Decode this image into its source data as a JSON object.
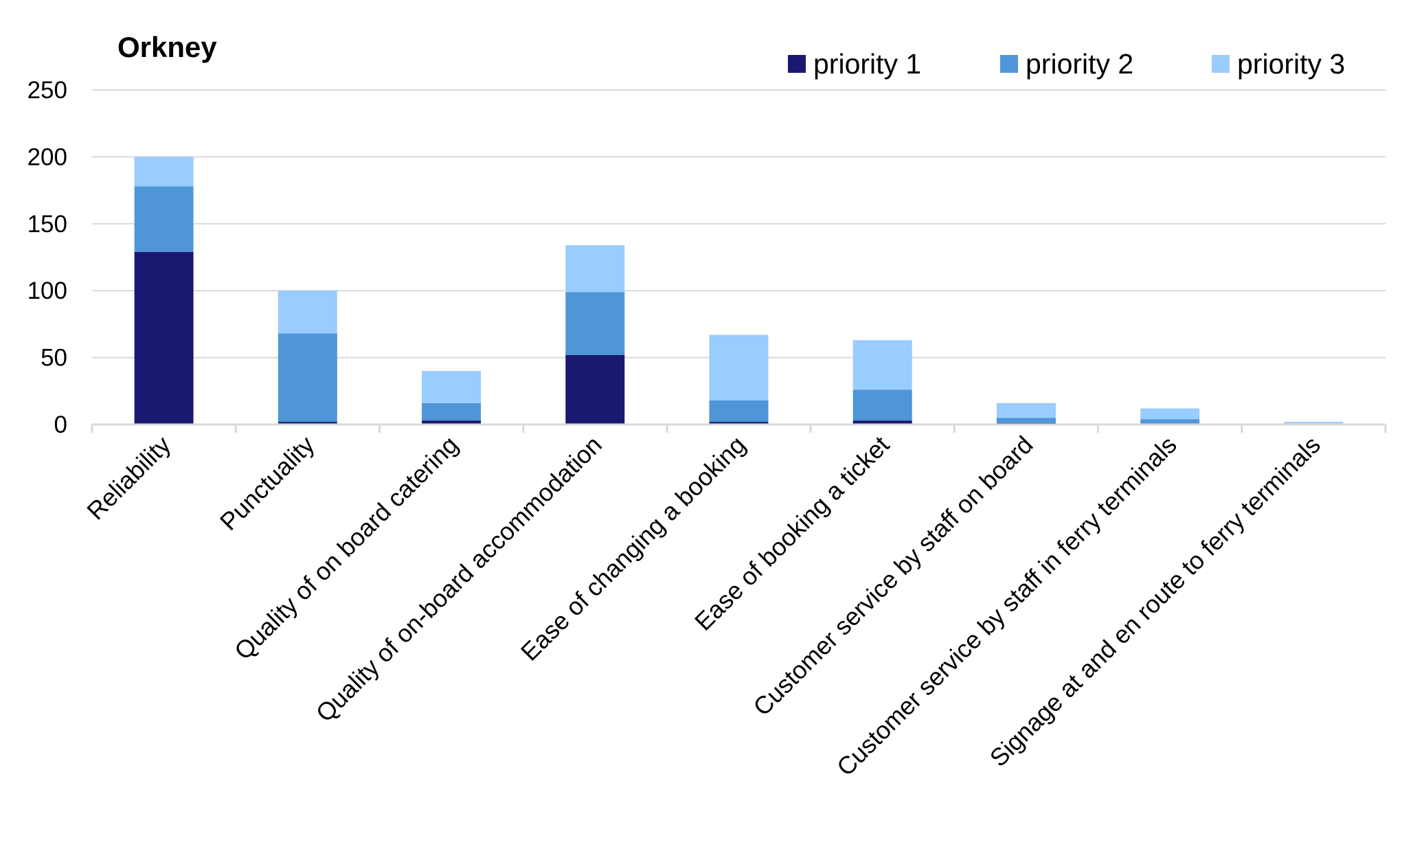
{
  "chart_data": {
    "type": "bar",
    "stacked": true,
    "title": "Orkney",
    "xlabel": "",
    "ylabel": "",
    "ylim": [
      0,
      250
    ],
    "yticks": [
      0,
      50,
      100,
      150,
      200,
      250
    ],
    "grid": true,
    "legend_position": "top-right",
    "categories": [
      "Reliability",
      "Punctuality",
      "Quality of on board catering",
      "Quality of on-board accommodation",
      "Ease of changing a booking",
      "Ease of booking a ticket",
      "Customer service by staff on board",
      "Customer service by staff in ferry terminals",
      "Signage at and en route to ferry terminals"
    ],
    "series": [
      {
        "name": "priority 1",
        "color": "#191970",
        "values": [
          129,
          2,
          3,
          52,
          2,
          3,
          1,
          0,
          0
        ]
      },
      {
        "name": "priority 2",
        "color": "#4f96d9",
        "values": [
          49,
          66,
          13,
          47,
          16,
          23,
          4,
          4,
          0
        ]
      },
      {
        "name": "priority 3",
        "color": "#99ccff",
        "values": [
          22,
          32,
          24,
          35,
          49,
          37,
          11,
          8,
          2
        ]
      }
    ]
  }
}
